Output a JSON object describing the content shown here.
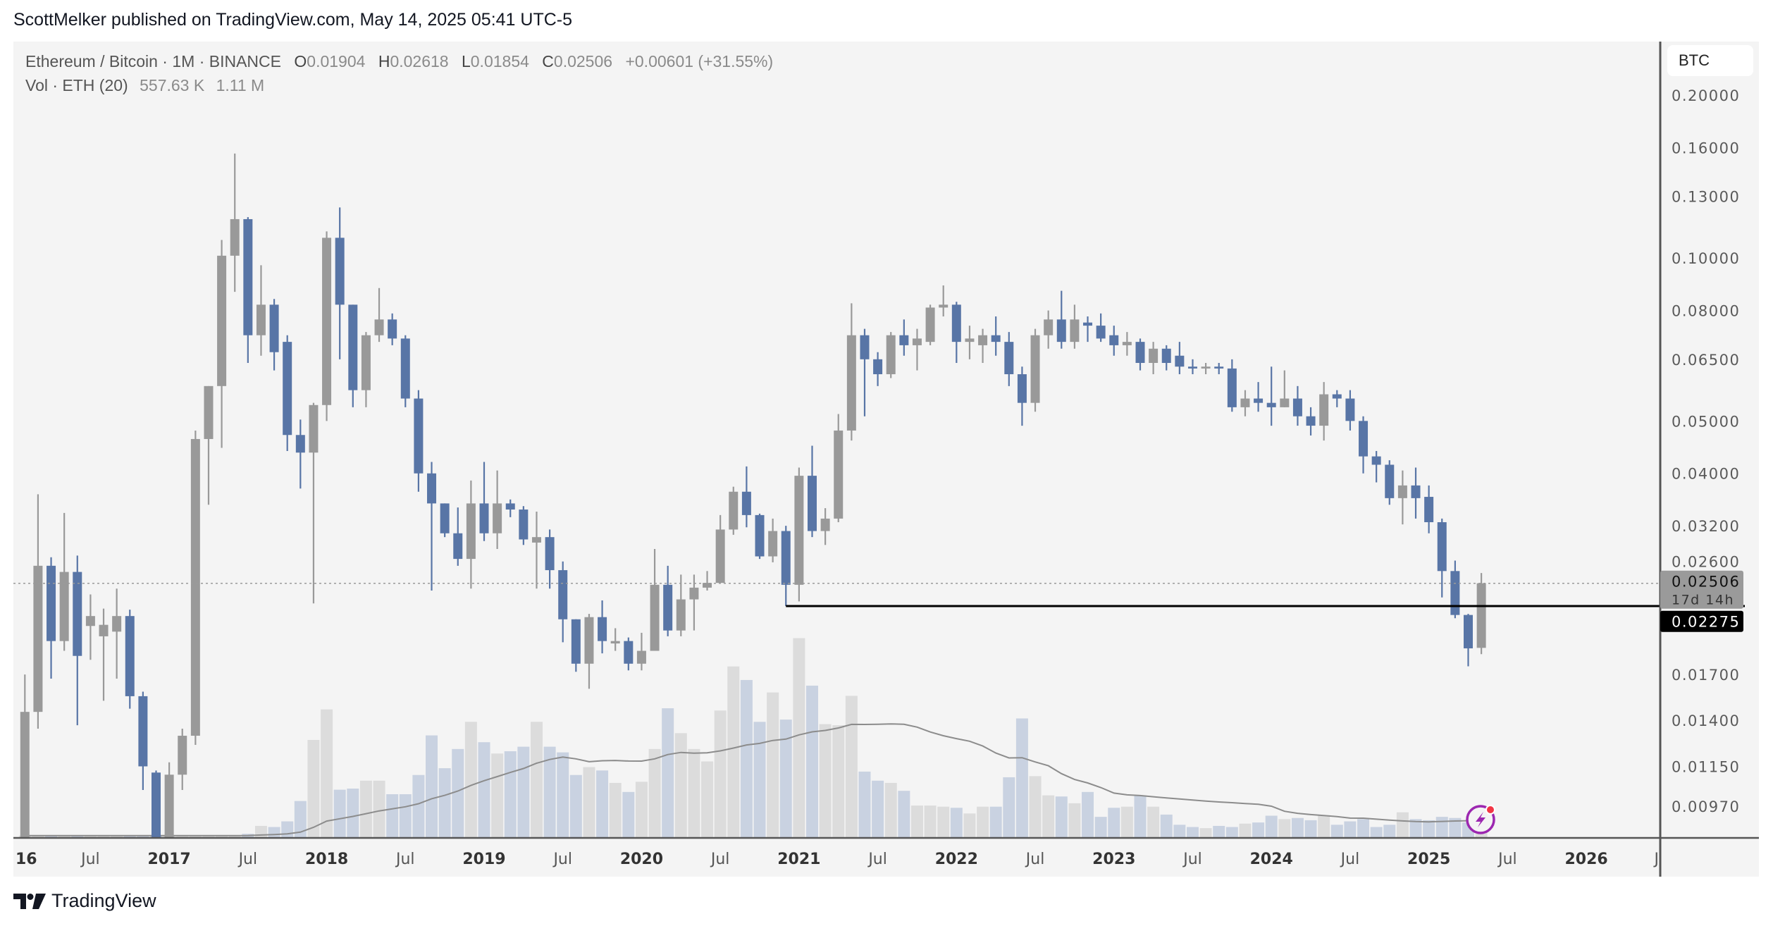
{
  "publish_line": "ScottMelker published on TradingView.com, May 14, 2025 05:41 UTC-5",
  "legend": {
    "symbol": "Ethereum / Bitcoin · 1M · BINANCE",
    "open_label": "O",
    "open": "0.01904",
    "high_label": "H",
    "high": "0.02618",
    "low_label": "L",
    "low": "0.01854",
    "close_label": "C",
    "close": "0.02506",
    "change": "+0.00601 (+31.55%)",
    "vol_label": "Vol · ETH (20)",
    "vol_value": "557.63 K",
    "vol_ma": "1.11 M"
  },
  "price_axis": {
    "currency": "BTC",
    "ticks": [
      "0.20000",
      "0.16000",
      "0.13000",
      "0.10000",
      "0.08000",
      "0.06500",
      "0.05000",
      "0.04000",
      "0.03200",
      "0.02600",
      "0.01700",
      "0.01400",
      "0.01150",
      "0.00970"
    ]
  },
  "current_price": {
    "value": "0.02506",
    "countdown": "17d 14h"
  },
  "hline": {
    "value": "0.02275",
    "start": "2020-12"
  },
  "time_axis": [
    {
      "label": "16",
      "date": "2016-01",
      "year": true
    },
    {
      "label": "Jul",
      "date": "2016-07"
    },
    {
      "label": "2017",
      "date": "2017-01",
      "year": true
    },
    {
      "label": "Jul",
      "date": "2017-07"
    },
    {
      "label": "2018",
      "date": "2018-01",
      "year": true
    },
    {
      "label": "Jul",
      "date": "2018-07"
    },
    {
      "label": "2019",
      "date": "2019-01",
      "year": true
    },
    {
      "label": "Jul",
      "date": "2019-07"
    },
    {
      "label": "2020",
      "date": "2020-01",
      "year": true
    },
    {
      "label": "Jul",
      "date": "2020-07"
    },
    {
      "label": "2021",
      "date": "2021-01",
      "year": true
    },
    {
      "label": "Jul",
      "date": "2021-07"
    },
    {
      "label": "2022",
      "date": "2022-01",
      "year": true
    },
    {
      "label": "Jul",
      "date": "2022-07"
    },
    {
      "label": "2023",
      "date": "2023-01",
      "year": true
    },
    {
      "label": "Jul",
      "date": "2023-07"
    },
    {
      "label": "2024",
      "date": "2024-01",
      "year": true
    },
    {
      "label": "Jul",
      "date": "2024-07"
    },
    {
      "label": "2025",
      "date": "2025-01",
      "year": true
    },
    {
      "label": "Jul",
      "date": "2025-07"
    },
    {
      "label": "2026",
      "date": "2026-01",
      "year": true
    },
    {
      "label": "J",
      "date": "2026-07"
    }
  ],
  "brand": "TradingView",
  "colors": {
    "up": "#999999",
    "down": "#5875a6",
    "vol_up": "#dcdcdc",
    "vol_down": "#c9d2e1",
    "ma": "#8c8c8c",
    "pane": "#f4f4f4",
    "alert": "#9c27b0"
  },
  "chart_data": {
    "type": "candlestick",
    "title": "Ethereum / Bitcoin · 1M · BINANCE",
    "scale": "log",
    "ylim": [
      0.0085,
      0.22
    ],
    "start": "2016-02",
    "interval": "1M",
    "ohlc": [
      [
        0.006,
        0.017,
        0.0059,
        0.0145
      ],
      [
        0.0145,
        0.0366,
        0.0135,
        0.027
      ],
      [
        0.027,
        0.028,
        0.0167,
        0.0196
      ],
      [
        0.0196,
        0.0338,
        0.0188,
        0.0263
      ],
      [
        0.0263,
        0.0282,
        0.0137,
        0.0184
      ],
      [
        0.0209,
        0.0239,
        0.0181,
        0.0218
      ],
      [
        0.02,
        0.0225,
        0.0152,
        0.021
      ],
      [
        0.0204,
        0.0245,
        0.0167,
        0.0218
      ],
      [
        0.0218,
        0.0224,
        0.0147,
        0.0155
      ],
      [
        0.0155,
        0.0158,
        0.0104,
        0.0115
      ],
      [
        0.0112,
        0.0113,
        0.0072,
        0.0077
      ],
      [
        0.0077,
        0.0117,
        0.0075,
        0.0111
      ],
      [
        0.0111,
        0.0135,
        0.0104,
        0.0131
      ],
      [
        0.0131,
        0.048,
        0.0126,
        0.0463
      ],
      [
        0.0463,
        0.058,
        0.035,
        0.058
      ],
      [
        0.058,
        0.108,
        0.0446,
        0.101
      ],
      [
        0.101,
        0.156,
        0.0866,
        0.118
      ],
      [
        0.118,
        0.119,
        0.064,
        0.072
      ],
      [
        0.072,
        0.097,
        0.066,
        0.082
      ],
      [
        0.082,
        0.084,
        0.062,
        0.067
      ],
      [
        0.07,
        0.072,
        0.044,
        0.0471
      ],
      [
        0.0471,
        0.0503,
        0.0375,
        0.0437
      ],
      [
        0.0437,
        0.054,
        0.023,
        0.0535
      ],
      [
        0.0535,
        0.112,
        0.05,
        0.109
      ],
      [
        0.109,
        0.124,
        0.065,
        0.082
      ],
      [
        0.082,
        0.082,
        0.053,
        0.057
      ],
      [
        0.057,
        0.073,
        0.053,
        0.072
      ],
      [
        0.072,
        0.088,
        0.07,
        0.077
      ],
      [
        0.077,
        0.079,
        0.069,
        0.071
      ],
      [
        0.071,
        0.072,
        0.053,
        0.055
      ],
      [
        0.055,
        0.057,
        0.037,
        0.04
      ],
      [
        0.04,
        0.042,
        0.0243,
        0.0352
      ],
      [
        0.0352,
        0.0352,
        0.0305,
        0.031
      ],
      [
        0.031,
        0.0346,
        0.027,
        0.0278
      ],
      [
        0.0278,
        0.0388,
        0.0245,
        0.0352
      ],
      [
        0.0352,
        0.042,
        0.03,
        0.031
      ],
      [
        0.031,
        0.0405,
        0.029,
        0.0352
      ],
      [
        0.0352,
        0.0358,
        0.0332,
        0.0343
      ],
      [
        0.0343,
        0.0348,
        0.0295,
        0.0302
      ],
      [
        0.0298,
        0.034,
        0.0245,
        0.0305
      ],
      [
        0.0305,
        0.0315,
        0.0245,
        0.0265
      ],
      [
        0.0265,
        0.0275,
        0.0195,
        0.0215
      ],
      [
        0.0215,
        0.0215,
        0.0172,
        0.0178
      ],
      [
        0.0178,
        0.022,
        0.016,
        0.0217
      ],
      [
        0.0217,
        0.0233,
        0.0186,
        0.0196
      ],
      [
        0.0194,
        0.0207,
        0.0188,
        0.0196
      ],
      [
        0.0196,
        0.0199,
        0.0173,
        0.0178
      ],
      [
        0.0178,
        0.0203,
        0.0173,
        0.0188
      ],
      [
        0.0188,
        0.029,
        0.0188,
        0.0249
      ],
      [
        0.0249,
        0.027,
        0.02,
        0.0205
      ],
      [
        0.0205,
        0.026,
        0.02,
        0.0234
      ],
      [
        0.0234,
        0.026,
        0.0205,
        0.0246
      ],
      [
        0.0246,
        0.0264,
        0.0243,
        0.0251
      ],
      [
        0.0251,
        0.0335,
        0.0251,
        0.0315
      ],
      [
        0.0315,
        0.0378,
        0.0308,
        0.037
      ],
      [
        0.037,
        0.0412,
        0.0318,
        0.0335
      ],
      [
        0.0335,
        0.0337,
        0.0278,
        0.0281
      ],
      [
        0.0281,
        0.033,
        0.0274,
        0.0313
      ],
      [
        0.0313,
        0.032,
        0.02275,
        0.0249
      ],
      [
        0.0249,
        0.041,
        0.0232,
        0.0396
      ],
      [
        0.0396,
        0.045,
        0.0305,
        0.0313
      ],
      [
        0.0313,
        0.0345,
        0.0295,
        0.033
      ],
      [
        0.033,
        0.0515,
        0.0325,
        0.048
      ],
      [
        0.048,
        0.0825,
        0.046,
        0.072
      ],
      [
        0.072,
        0.074,
        0.051,
        0.065
      ],
      [
        0.065,
        0.067,
        0.058,
        0.061
      ],
      [
        0.061,
        0.073,
        0.06,
        0.072
      ],
      [
        0.072,
        0.077,
        0.066,
        0.069
      ],
      [
        0.069,
        0.074,
        0.062,
        0.071
      ],
      [
        0.07,
        0.082,
        0.069,
        0.081
      ],
      [
        0.081,
        0.089,
        0.078,
        0.082
      ],
      [
        0.082,
        0.083,
        0.064,
        0.07
      ],
      [
        0.07,
        0.075,
        0.065,
        0.071
      ],
      [
        0.069,
        0.074,
        0.064,
        0.072
      ],
      [
        0.072,
        0.078,
        0.066,
        0.07
      ],
      [
        0.07,
        0.073,
        0.058,
        0.061
      ],
      [
        0.061,
        0.063,
        0.049,
        0.054
      ],
      [
        0.054,
        0.074,
        0.052,
        0.072
      ],
      [
        0.072,
        0.08,
        0.068,
        0.077
      ],
      [
        0.077,
        0.087,
        0.068,
        0.07
      ],
      [
        0.07,
        0.082,
        0.068,
        0.077
      ],
      [
        0.076,
        0.078,
        0.07,
        0.075
      ],
      [
        0.075,
        0.079,
        0.07,
        0.071
      ],
      [
        0.072,
        0.075,
        0.066,
        0.069
      ],
      [
        0.069,
        0.073,
        0.066,
        0.07
      ],
      [
        0.07,
        0.071,
        0.062,
        0.064
      ],
      [
        0.064,
        0.07,
        0.061,
        0.068
      ],
      [
        0.068,
        0.069,
        0.062,
        0.064
      ],
      [
        0.066,
        0.07,
        0.061,
        0.063
      ],
      [
        0.063,
        0.065,
        0.061,
        0.0625
      ],
      [
        0.0625,
        0.064,
        0.061,
        0.063
      ],
      [
        0.063,
        0.064,
        0.061,
        0.0625
      ],
      [
        0.0625,
        0.065,
        0.052,
        0.053
      ],
      [
        0.053,
        0.057,
        0.051,
        0.055
      ],
      [
        0.055,
        0.059,
        0.052,
        0.054
      ],
      [
        0.054,
        0.063,
        0.049,
        0.053
      ],
      [
        0.053,
        0.062,
        0.053,
        0.055
      ],
      [
        0.055,
        0.058,
        0.049,
        0.051
      ],
      [
        0.051,
        0.053,
        0.047,
        0.049
      ],
      [
        0.049,
        0.059,
        0.046,
        0.056
      ],
      [
        0.056,
        0.057,
        0.053,
        0.055
      ],
      [
        0.055,
        0.057,
        0.048,
        0.05
      ],
      [
        0.05,
        0.051,
        0.04,
        0.043
      ],
      [
        0.043,
        0.044,
        0.0385,
        0.0415
      ],
      [
        0.0415,
        0.0423,
        0.035,
        0.036
      ],
      [
        0.036,
        0.0405,
        0.0322,
        0.038
      ],
      [
        0.038,
        0.041,
        0.033,
        0.036
      ],
      [
        0.0362,
        0.038,
        0.031,
        0.0325
      ],
      [
        0.0325,
        0.033,
        0.0236,
        0.0264
      ],
      [
        0.0264,
        0.0276,
        0.0216,
        0.0219
      ],
      [
        0.0219,
        0.022,
        0.0176,
        0.019
      ],
      [
        0.01904,
        0.02618,
        0.01854,
        0.02506
      ]
    ],
    "volume_k": [
      50,
      50,
      50,
      50,
      50,
      50,
      50,
      50,
      50,
      50,
      50,
      50,
      50,
      50,
      50,
      50,
      50,
      105,
      350,
      315,
      490,
      1120,
      3010,
      3955,
      1470,
      1505,
      1750,
      1750,
      1330,
      1330,
      1925,
      3150,
      2135,
      2730,
      3570,
      2940,
      2590,
      2660,
      2800,
      3570,
      2800,
      2625,
      1925,
      2170,
      2065,
      1680,
      1400,
      1715,
      2730,
      3990,
      3220,
      2730,
      2345,
      3920,
      5285,
      4865,
      3570,
      4480,
      3640,
      6160,
      4690,
      3500,
      3465,
      4375,
      2030,
      1750,
      1680,
      1435,
      980,
      980,
      945,
      910,
      735,
      945,
      945,
      1855,
      3675,
      1890,
      1295,
      1260,
      1050,
      1400,
      630,
      910,
      945,
      1295,
      945,
      700,
      385,
      315,
      280,
      350,
      315,
      420,
      455,
      665,
      560,
      595,
      525,
      665,
      385,
      490,
      560,
      315,
      385,
      770,
      560,
      525,
      630,
      595,
      455,
      557.63
    ],
    "volume_ma_period": 20
  }
}
